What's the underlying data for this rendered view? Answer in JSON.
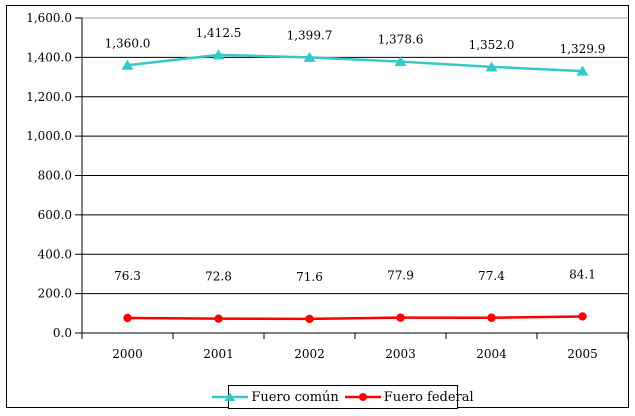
{
  "chart_data": {
    "type": "line",
    "title": "",
    "xlabel": "",
    "ylabel": "",
    "categories": [
      "2000",
      "2001",
      "2002",
      "2003",
      "2004",
      "2005"
    ],
    "series": [
      {
        "name": "Fuero común",
        "color": "#35C8C8",
        "marker": "triangle",
        "values": [
          1360.0,
          1412.5,
          1399.7,
          1378.6,
          1352.0,
          1329.9
        ],
        "labels": [
          "1,360.0",
          "1,412.5",
          "1,399.7",
          "1,378.6",
          "1,352.0",
          "1,329.9"
        ]
      },
      {
        "name": "Fuero federal",
        "color": "#FF0000",
        "marker": "circle",
        "values": [
          76.3,
          72.8,
          71.6,
          77.9,
          77.4,
          84.1
        ],
        "labels": [
          "76.3",
          "72.8",
          "71.6",
          "77.9",
          "77.4",
          "84.1"
        ]
      }
    ],
    "ylim": [
      0,
      1600
    ],
    "ytick_step": 200,
    "ytick_labels": [
      "0.0",
      "200.0",
      "400.0",
      "600.0",
      "800.0",
      "1,000.0",
      "1,200.0",
      "1,400.0",
      "1,600.0"
    ],
    "grid": true,
    "legend_position": "bottom",
    "colors": {
      "axis": "#000000",
      "gridline": "#000000",
      "top_gridline": "#A6A6A6",
      "background": "#FFFFFF",
      "text": "#000000"
    }
  }
}
